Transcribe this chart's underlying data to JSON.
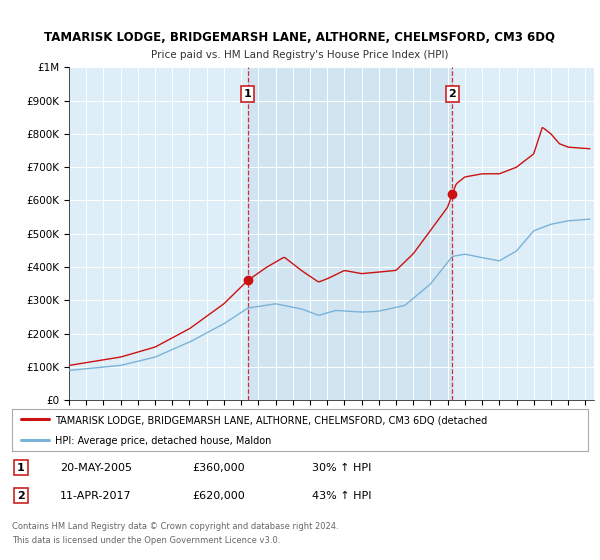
{
  "title": "TAMARISK LODGE, BRIDGEMARSH LANE, ALTHORNE, CHELMSFORD, CM3 6DQ",
  "subtitle": "Price paid vs. HM Land Registry's House Price Index (HPI)",
  "ylim": [
    0,
    1000000
  ],
  "yticks": [
    0,
    100000,
    200000,
    300000,
    400000,
    500000,
    600000,
    700000,
    800000,
    900000,
    1000000
  ],
  "ytick_labels": [
    "£0",
    "£100K",
    "£200K",
    "£300K",
    "£400K",
    "£500K",
    "£600K",
    "£700K",
    "£800K",
    "£900K",
    "£1M"
  ],
  "xlim_start": 1995.0,
  "xlim_end": 2025.5,
  "sale1_date": 2005.38,
  "sale1_price": 360000,
  "sale2_date": 2017.27,
  "sale2_price": 620000,
  "hpi_line_color": "#7ab3d8",
  "price_line_color": "#cc1111",
  "background_color": "#ddeef8",
  "shaded_color": "#cce0f0",
  "grid_color": "#ffffff",
  "legend_label_price": "TAMARISK LODGE, BRIDGEMARSH LANE, ALTHORNE, CHELMSFORD, CM3 6DQ (detached",
  "legend_label_hpi": "HPI: Average price, detached house, Maldon",
  "table_row1": [
    "1",
    "20-MAY-2005",
    "£360,000",
    "30% ↑ HPI"
  ],
  "table_row2": [
    "2",
    "11-APR-2017",
    "£620,000",
    "43% ↑ HPI"
  ],
  "footer_line1": "Contains HM Land Registry data © Crown copyright and database right 2024.",
  "footer_line2": "This data is licensed under the Open Government Licence v3.0."
}
